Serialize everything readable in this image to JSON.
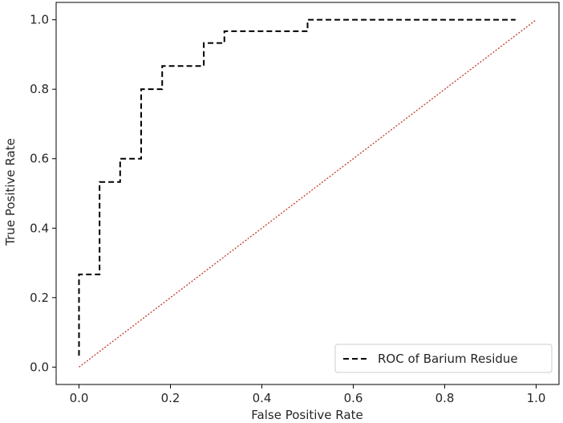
{
  "chart_data": {
    "type": "line",
    "title": "",
    "xlabel": "False Positive Rate",
    "ylabel": "True Positive Rate",
    "xlim": [
      -0.05,
      1.05
    ],
    "ylim": [
      -0.05,
      1.05
    ],
    "xticks": [
      0.0,
      0.2,
      0.4,
      0.6,
      0.8,
      1.0
    ],
    "yticks": [
      0.0,
      0.2,
      0.4,
      0.6,
      0.8,
      1.0
    ],
    "xtick_labels": [
      "0.0",
      "0.2",
      "0.4",
      "0.6",
      "0.8",
      "1.0"
    ],
    "ytick_labels": [
      "0.0",
      "0.2",
      "0.4",
      "0.6",
      "0.8",
      "1.0"
    ],
    "grid": false,
    "legend_position": "bottom-right",
    "series": [
      {
        "name": "ROC of Barium Residue",
        "style": "dashed",
        "color": "#000000",
        "x": [
          0.0,
          0.0,
          0.0,
          0.045,
          0.045,
          0.09,
          0.09,
          0.136,
          0.136,
          0.182,
          0.182,
          0.273,
          0.273,
          0.318,
          0.318,
          0.5,
          0.5,
          0.955
        ],
        "y": [
          0.033,
          0.267,
          0.267,
          0.267,
          0.533,
          0.533,
          0.6,
          0.6,
          0.8,
          0.8,
          0.867,
          0.867,
          0.933,
          0.933,
          0.967,
          0.967,
          1.0,
          1.0
        ]
      },
      {
        "name": "",
        "style": "dotted",
        "color": "#c0392b",
        "x": [
          0.0,
          1.0
        ],
        "y": [
          0.0,
          1.0
        ]
      }
    ]
  }
}
